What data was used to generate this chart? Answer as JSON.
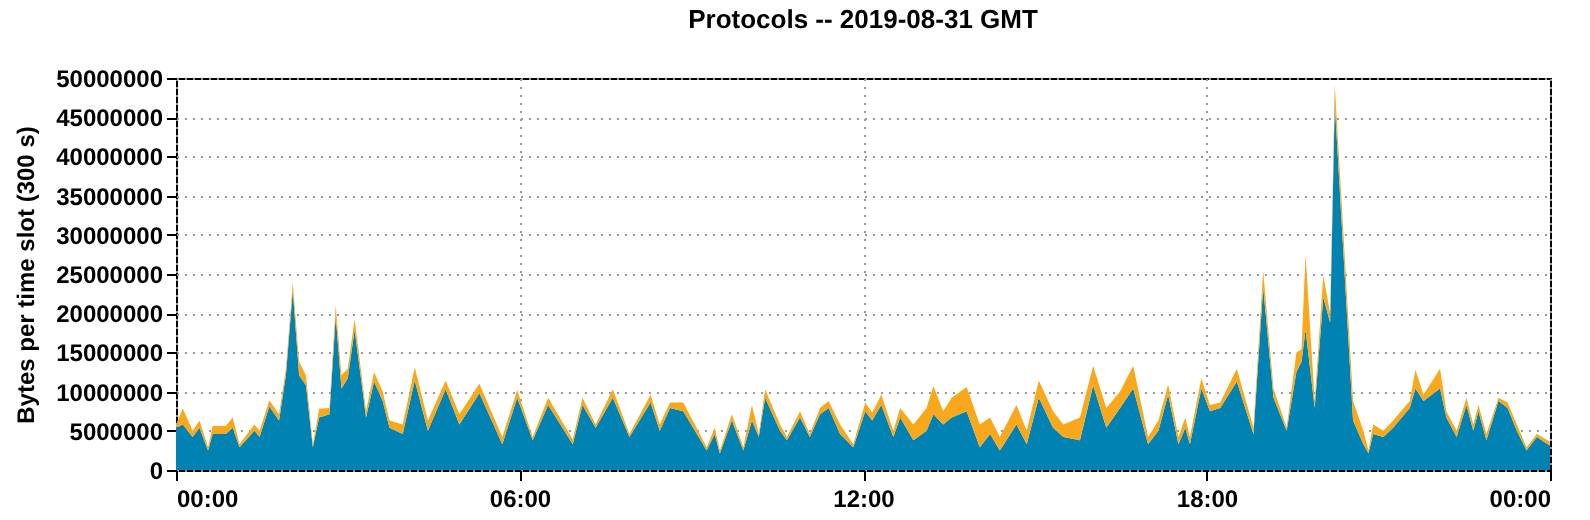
{
  "chart_data": {
    "type": "area",
    "stacked": true,
    "title": "Protocols -- 2019-08-31 GMT",
    "ylabel": "Bytes per time slot (300 s)",
    "x": [
      0,
      0.12,
      0.29,
      0.41,
      0.56,
      0.64,
      0.87,
      0.99,
      1.11,
      1.37,
      1.46,
      1.63,
      1.8,
      1.92,
      2.04,
      2.15,
      2.27,
      2.39,
      2.5,
      2.68,
      2.79,
      2.89,
      3,
      3.12,
      3.32,
      3.46,
      3.61,
      3.73,
      3.96,
      4.17,
      4.4,
      4.71,
      4.95,
      5.3,
      5.7,
      5.96,
      6.23,
      6.5,
      6.93,
      7.1,
      7.33,
      7.63,
      7.92,
      8.29,
      8.45,
      8.63,
      8.86,
      9.27,
      9.41,
      9.5,
      9.71,
      9.91,
      10.06,
      10.18,
      10.29,
      10.55,
      10.67,
      10.9,
      11.07,
      11.25,
      11.4,
      11.6,
      11.83,
      12.04,
      12.16,
      12.32,
      12.53,
      12.65,
      12.88,
      13.11,
      13.23,
      13.4,
      13.55,
      13.81,
      14.04,
      14.22,
      14.39,
      14.68,
      14.86,
      15.07,
      15.32,
      15.5,
      15.79,
      16.02,
      16.25,
      16.49,
      16.72,
      16.98,
      17.16,
      17.33,
      17.51,
      17.63,
      17.71,
      17.91,
      18.06,
      18.24,
      18.53,
      18.82,
      18.99,
      19.17,
      19.4,
      19.57,
      19.66,
      19.73,
      19.89,
      20.04,
      20.16,
      20.24,
      20.39,
      20.56,
      20.74,
      20.83,
      20.91,
      21.09,
      21.26,
      21.55,
      21.65,
      21.79,
      22.08,
      22.19,
      22.37,
      22.54,
      22.66,
      22.75,
      22.89,
      23.1,
      23.26,
      23.42,
      23.59,
      23.77,
      24
    ],
    "series": [
      {
        "color": "#0083b3",
        "values": [
          5400000,
          5800000,
          4200000,
          5400000,
          2500000,
          4600000,
          4600000,
          5400000,
          2900000,
          5000000,
          4200000,
          8100000,
          6300000,
          12100000,
          22900000,
          12100000,
          10800000,
          2900000,
          6700000,
          7100000,
          19600000,
          10400000,
          11700000,
          17900000,
          6700000,
          11300000,
          8800000,
          5400000,
          4600000,
          11400000,
          5000000,
          10300000,
          5800000,
          9800000,
          3300000,
          9200000,
          3800000,
          8300000,
          3300000,
          8300000,
          5400000,
          9200000,
          4200000,
          8600000,
          5000000,
          7900000,
          7500000,
          2500000,
          4600000,
          2100000,
          6300000,
          2500000,
          6300000,
          4200000,
          9200000,
          5000000,
          3800000,
          6700000,
          4200000,
          7100000,
          7900000,
          4600000,
          2900000,
          7500000,
          6300000,
          8300000,
          4200000,
          6700000,
          3800000,
          5000000,
          7100000,
          5800000,
          6700000,
          7500000,
          2900000,
          4600000,
          2500000,
          5800000,
          3300000,
          9200000,
          5400000,
          4200000,
          3800000,
          10800000,
          5400000,
          7900000,
          10400000,
          3300000,
          5000000,
          9600000,
          3300000,
          5400000,
          3300000,
          10400000,
          7500000,
          7900000,
          11300000,
          4600000,
          23300000,
          9200000,
          5000000,
          12500000,
          13800000,
          17900000,
          7900000,
          22000000,
          18800000,
          46700000,
          27900000,
          6300000,
          3300000,
          2100000,
          4600000,
          4200000,
          5400000,
          7900000,
          10400000,
          8800000,
          10400000,
          6700000,
          4200000,
          8300000,
          5000000,
          7500000,
          3800000,
          8800000,
          7900000,
          5000000,
          2500000,
          4200000,
          3100000
        ]
      },
      {
        "color": "#f8a81a",
        "values": [
          400000,
          2000000,
          800000,
          900000,
          400000,
          1000000,
          1000000,
          1300000,
          400000,
          800000,
          800000,
          800000,
          800000,
          800000,
          1000000,
          1700000,
          1300000,
          400000,
          1100000,
          800000,
          1400000,
          1700000,
          1200000,
          1400000,
          800000,
          1200000,
          1200000,
          900000,
          1200000,
          1700000,
          1300000,
          1100000,
          1300000,
          1200000,
          900000,
          1000000,
          400000,
          900000,
          600000,
          900000,
          400000,
          1100000,
          400000,
          1000000,
          800000,
          700000,
          1100000,
          400000,
          800000,
          400000,
          800000,
          400000,
          2000000,
          400000,
          1100000,
          800000,
          400000,
          800000,
          400000,
          800000,
          900000,
          1200000,
          400000,
          1100000,
          1000000,
          1300000,
          800000,
          1200000,
          2000000,
          2900000,
          3600000,
          1700000,
          2500000,
          3100000,
          2900000,
          2100000,
          1700000,
          2500000,
          1700000,
          2200000,
          2100000,
          1600000,
          2900000,
          2500000,
          2500000,
          2100000,
          2900000,
          900000,
          1300000,
          1300000,
          900000,
          1300000,
          900000,
          1300000,
          800000,
          700000,
          1600000,
          800000,
          2100000,
          1200000,
          400000,
          2500000,
          1600000,
          9600000,
          900000,
          2800000,
          1200000,
          2500000,
          2500000,
          2500000,
          1700000,
          400000,
          1200000,
          800000,
          900000,
          900000,
          2400000,
          800000,
          2500000,
          800000,
          800000,
          900000,
          800000,
          800000,
          800000,
          400000,
          700000,
          800000,
          400000,
          400000,
          500000
        ]
      }
    ],
    "xlim": [
      0,
      24
    ],
    "xticks": [
      {
        "value": 0,
        "label": "00:00"
      },
      {
        "value": 6,
        "label": "06:00"
      },
      {
        "value": 12,
        "label": "12:00"
      },
      {
        "value": 18,
        "label": "18:00"
      },
      {
        "value": 24,
        "label": "00:00"
      }
    ],
    "ylim": [
      0,
      50000000
    ],
    "yticks": [
      0,
      5000000,
      10000000,
      15000000,
      20000000,
      25000000,
      30000000,
      35000000,
      40000000,
      45000000,
      50000000
    ],
    "grid": true,
    "legend": false
  }
}
